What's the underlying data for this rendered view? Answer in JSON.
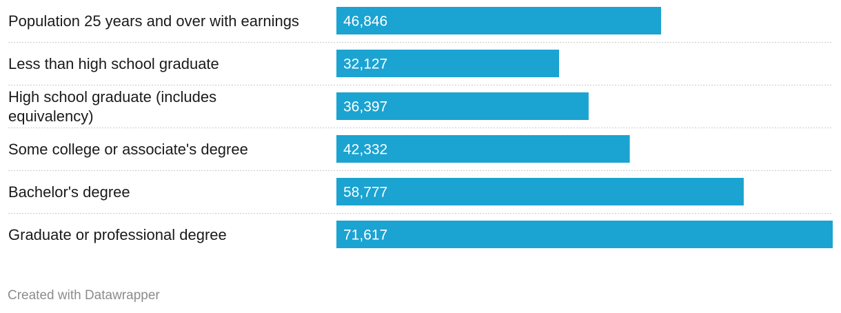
{
  "chart_data": {
    "type": "bar",
    "orientation": "horizontal",
    "categories": [
      [
        "Population 25 years and over with earnings"
      ],
      [
        "Less than high school graduate"
      ],
      [
        "High school graduate (includes",
        "equivalency)"
      ],
      [
        "Some college or associate's degree"
      ],
      [
        "Bachelor's degree"
      ],
      [
        "Graduate or professional degree"
      ]
    ],
    "values": [
      46846,
      32127,
      36397,
      42332,
      58777,
      71617
    ],
    "value_labels": [
      "46,846",
      "32,127",
      "36,397",
      "42,332",
      "58,777",
      "71,617"
    ],
    "xlim": [
      0,
      71617
    ],
    "bar_color": "#1ba3d1",
    "grid": false,
    "legend": "none"
  },
  "footer": {
    "credit": "Created with Datawrapper"
  }
}
